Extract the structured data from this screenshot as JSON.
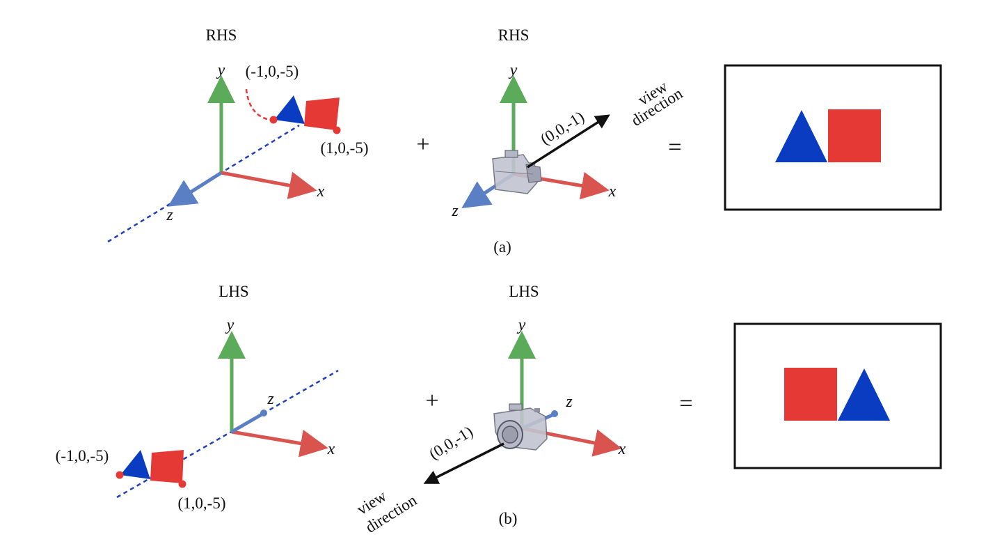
{
  "panel_a": {
    "world_title": "RHS",
    "camera_title": "RHS",
    "caption": "(a)",
    "axis_x": "x",
    "axis_y": "y",
    "axis_z": "z",
    "point_left": "(-1,0,-5)",
    "point_right": "(1,0,-5)",
    "view_vector": "(0,0,-1)",
    "view_word_1": "view",
    "view_word_2": "direction",
    "plus": "+",
    "equals": "=",
    "result_order": [
      "triangle",
      "square"
    ]
  },
  "panel_b": {
    "world_title": "LHS",
    "camera_title": "LHS",
    "caption": "(b)",
    "axis_x": "x",
    "axis_y": "y",
    "axis_z": "z",
    "point_left": "(-1,0,-5)",
    "point_right": "(1,0,-5)",
    "view_vector": "(0,0,-1)",
    "view_word_1": "view",
    "view_word_2": "direction",
    "plus": "+",
    "equals": "=",
    "result_order": [
      "square",
      "triangle"
    ]
  },
  "colors": {
    "y_axis": "#5bab5b",
    "x_axis": "#d9534f",
    "z_axis": "#5a7fc4",
    "dashed_line": "#1f3fbf",
    "triangle": "#0a3cc2",
    "square": "#e53935",
    "camera": "#a7a9b8"
  }
}
